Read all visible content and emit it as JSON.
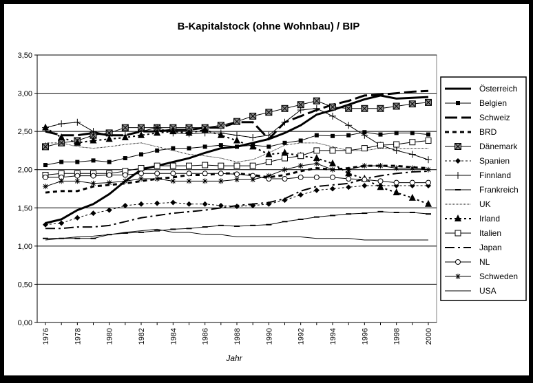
{
  "chart_data": {
    "type": "line",
    "title": "B-Kapitalstock (ohne Wohnbau) / BIP",
    "xlabel": "Jahr",
    "ylabel": "",
    "ylim": [
      0,
      3.5
    ],
    "yticks": [
      "0,00",
      "0,50",
      "1,00",
      "1,50",
      "2,00",
      "2,50",
      "3,00",
      "3,50"
    ],
    "xticks": [
      "1976",
      "1978",
      "1980",
      "1982",
      "1984",
      "1986",
      "1988",
      "1990",
      "1992",
      "1994",
      "1996",
      "1998",
      "2000"
    ],
    "x": [
      1976,
      1977,
      1978,
      1979,
      1980,
      1981,
      1982,
      1983,
      1984,
      1985,
      1986,
      1987,
      1988,
      1989,
      1990,
      1991,
      1992,
      1993,
      1994,
      1995,
      1996,
      1997,
      1998,
      1999,
      2000
    ],
    "grid": "horizontal",
    "legend_position": "right",
    "series": [
      {
        "name": "Österreich",
        "values": [
          1.3,
          1.35,
          1.47,
          1.55,
          1.68,
          1.85,
          2.0,
          2.05,
          2.1,
          2.15,
          2.22,
          2.28,
          2.3,
          2.35,
          2.4,
          2.48,
          2.58,
          2.72,
          2.78,
          2.85,
          2.92,
          2.97,
          2.93,
          2.94,
          2.95
        ]
      },
      {
        "name": "Belgien",
        "values": [
          2.06,
          2.1,
          2.1,
          2.12,
          2.1,
          2.15,
          2.2,
          2.25,
          2.28,
          2.28,
          2.3,
          2.32,
          2.3,
          2.32,
          2.3,
          2.35,
          2.38,
          2.45,
          2.44,
          2.45,
          2.49,
          2.46,
          2.48,
          2.48,
          2.46
        ]
      },
      {
        "name": "Schweiz",
        "values": [
          2.5,
          2.45,
          2.45,
          2.48,
          2.45,
          2.45,
          2.5,
          2.5,
          2.52,
          2.52,
          2.55,
          2.55,
          2.62,
          2.62,
          2.4,
          2.62,
          2.7,
          2.78,
          2.85,
          2.9,
          2.97,
          2.98,
          3.0,
          3.02,
          3.03
        ]
      },
      {
        "name": "BRD",
        "values": [
          1.7,
          1.72,
          1.72,
          1.78,
          1.8,
          1.82,
          1.85,
          1.88,
          1.9,
          1.93,
          1.93,
          1.95,
          1.95,
          1.93,
          1.9,
          1.93,
          1.98,
          2.02,
          2.0,
          2.02,
          2.05,
          2.05,
          2.05,
          2.03,
          2.02
        ]
      },
      {
        "name": "Dänemark",
        "values": [
          2.3,
          2.35,
          2.38,
          2.45,
          2.48,
          2.55,
          2.55,
          2.55,
          2.55,
          2.55,
          2.55,
          2.58,
          2.63,
          2.7,
          2.75,
          2.8,
          2.85,
          2.9,
          2.82,
          2.8,
          2.8,
          2.8,
          2.83,
          2.86,
          2.88
        ]
      },
      {
        "name": "Spanien",
        "values": [
          1.28,
          1.3,
          1.37,
          1.43,
          1.47,
          1.53,
          1.55,
          1.56,
          1.57,
          1.55,
          1.55,
          1.53,
          1.52,
          1.53,
          1.55,
          1.6,
          1.67,
          1.73,
          1.75,
          1.77,
          1.79,
          1.79,
          1.79,
          1.79,
          1.79
        ]
      },
      {
        "name": "Finnland",
        "values": [
          2.55,
          2.6,
          2.62,
          2.5,
          2.45,
          2.45,
          2.5,
          2.55,
          2.48,
          2.47,
          2.48,
          2.48,
          2.45,
          2.42,
          2.45,
          2.62,
          2.78,
          2.8,
          2.7,
          2.58,
          2.45,
          2.32,
          2.25,
          2.2,
          2.13
        ]
      },
      {
        "name": "Frankreich",
        "values": [
          1.1,
          1.1,
          1.1,
          1.1,
          1.15,
          1.17,
          1.18,
          1.2,
          1.22,
          1.23,
          1.25,
          1.27,
          1.26,
          1.27,
          1.28,
          1.32,
          1.35,
          1.38,
          1.4,
          1.42,
          1.43,
          1.45,
          1.44,
          1.44,
          1.42
        ]
      },
      {
        "name": "UK",
        "values": [
          2.35,
          2.35,
          2.3,
          2.28,
          2.3,
          2.33,
          2.35,
          2.3,
          2.25,
          2.2,
          2.18,
          2.15,
          2.1,
          2.13,
          2.22,
          2.32,
          2.35,
          2.35,
          2.3,
          2.25,
          2.25,
          2.28,
          2.27,
          2.28,
          2.28
        ]
      },
      {
        "name": "Irland",
        "values": [
          2.55,
          2.42,
          2.35,
          2.38,
          2.4,
          2.42,
          2.45,
          2.48,
          2.5,
          2.48,
          2.52,
          2.45,
          2.38,
          2.3,
          2.2,
          2.22,
          2.18,
          2.15,
          2.08,
          1.95,
          1.88,
          1.77,
          1.7,
          1.63,
          1.55
        ]
      },
      {
        "name": "Italien",
        "values": [
          1.93,
          1.95,
          1.95,
          1.95,
          1.95,
          1.98,
          2.02,
          2.05,
          2.05,
          2.05,
          2.06,
          2.05,
          2.05,
          2.05,
          2.1,
          2.15,
          2.18,
          2.25,
          2.25,
          2.25,
          2.28,
          2.32,
          2.33,
          2.36,
          2.38
        ]
      },
      {
        "name": "Japan",
        "values": [
          1.23,
          1.23,
          1.25,
          1.25,
          1.27,
          1.32,
          1.37,
          1.4,
          1.43,
          1.45,
          1.47,
          1.5,
          1.53,
          1.55,
          1.57,
          1.62,
          1.72,
          1.78,
          1.8,
          1.82,
          1.88,
          1.92,
          1.95,
          1.97,
          1.98
        ]
      },
      {
        "name": "NL",
        "values": [
          1.9,
          1.9,
          1.92,
          1.92,
          1.93,
          1.93,
          1.95,
          1.95,
          1.95,
          1.95,
          1.95,
          1.95,
          1.94,
          1.92,
          1.88,
          1.88,
          1.9,
          1.9,
          1.9,
          1.88,
          1.87,
          1.85,
          1.83,
          1.83,
          1.83
        ]
      },
      {
        "name": "Schweden",
        "values": [
          1.78,
          1.85,
          1.85,
          1.82,
          1.83,
          1.85,
          1.88,
          1.88,
          1.85,
          1.85,
          1.85,
          1.85,
          1.87,
          1.87,
          1.92,
          2.0,
          2.05,
          2.08,
          2.0,
          2.0,
          2.05,
          2.05,
          2.02,
          2.02,
          2.0
        ]
      },
      {
        "name": "USA",
        "values": [
          1.08,
          1.1,
          1.12,
          1.13,
          1.15,
          1.18,
          1.2,
          1.22,
          1.18,
          1.18,
          1.15,
          1.15,
          1.12,
          1.12,
          1.12,
          1.12,
          1.12,
          1.1,
          1.1,
          1.1,
          1.08,
          1.08,
          1.08,
          1.08,
          1.08
        ]
      }
    ]
  }
}
